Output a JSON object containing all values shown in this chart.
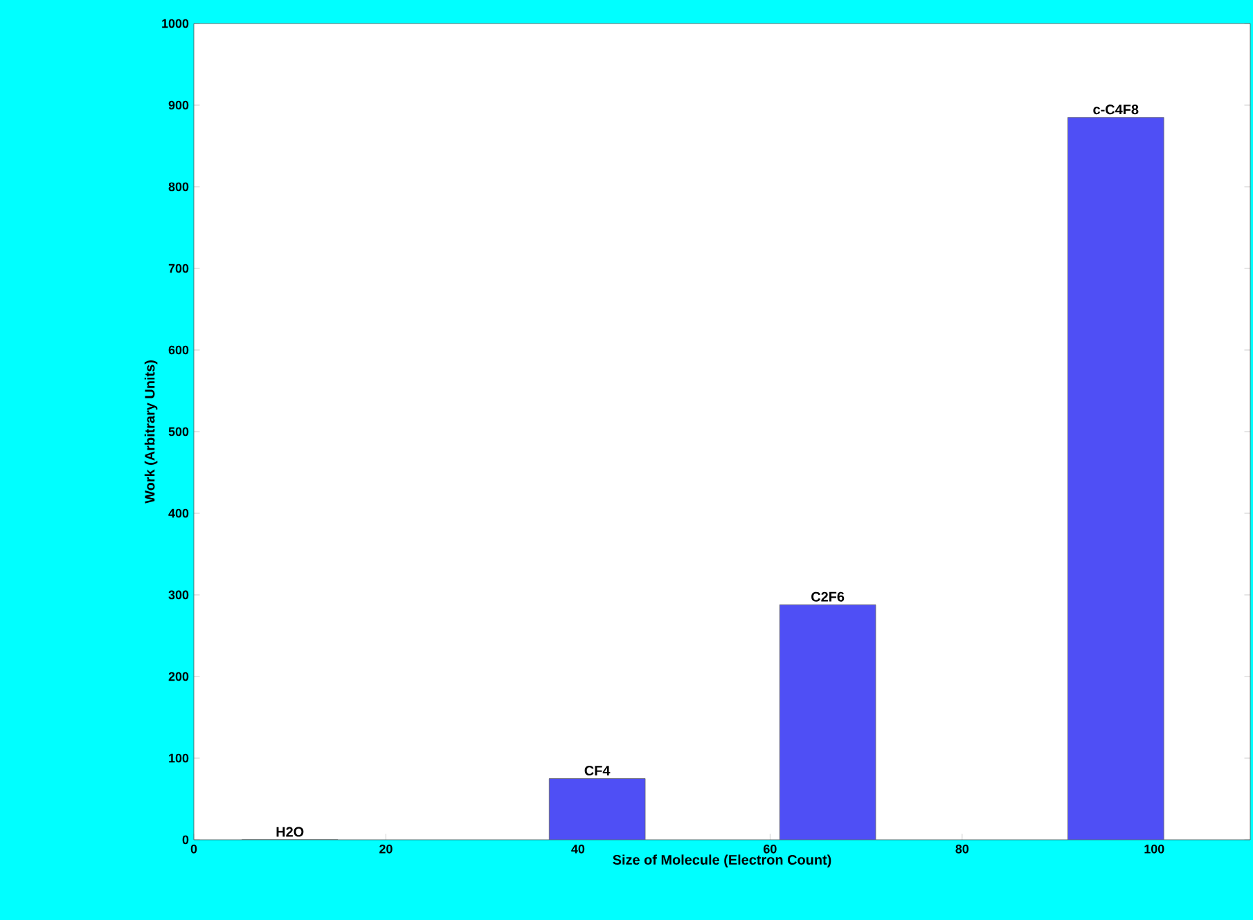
{
  "chart_data": {
    "type": "bar",
    "xlabel": "Size of Molecule (Electron Count)",
    "ylabel": "Work (Arbitrary Units)",
    "x": [
      10,
      42,
      66,
      96
    ],
    "values": [
      0,
      75,
      288,
      885
    ],
    "color": "#4f4ff5",
    "xlim": [
      0,
      110
    ],
    "xticks": [
      0,
      20,
      40,
      60,
      80,
      100
    ],
    "ylim": [
      0,
      1000
    ],
    "yticks": [
      0,
      100,
      200,
      300,
      400,
      500,
      600,
      700,
      800,
      900,
      1000
    ],
    "grid": false,
    "annotations": [
      {
        "text": "H2O",
        "x": 10,
        "y": 0
      },
      {
        "text": "CF4",
        "x": 42,
        "y": 75
      },
      {
        "text": "C2F6",
        "x": 66,
        "y": 288
      },
      {
        "text": "c-C4F8",
        "x": 96,
        "y": 885
      }
    ]
  }
}
